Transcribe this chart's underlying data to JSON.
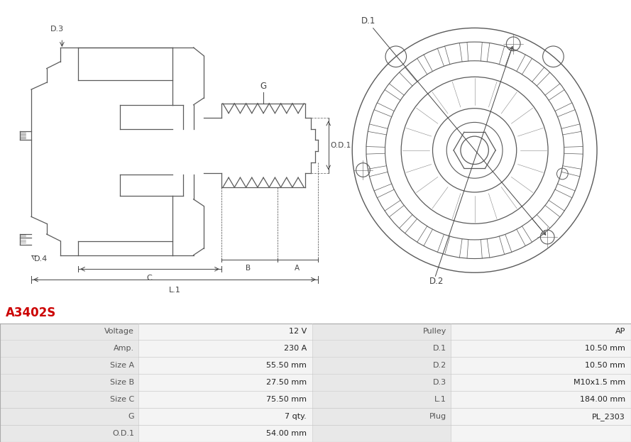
{
  "title": "A3402S",
  "title_color": "#cc0000",
  "background_color": "#ffffff",
  "table_row_bg_odd": "#e8e8e8",
  "table_row_bg_even": "#f4f4f4",
  "table_data": [
    [
      "Voltage",
      "12 V",
      "Pulley",
      "AP"
    ],
    [
      "Amp.",
      "230 A",
      "D.1",
      "10.50 mm"
    ],
    [
      "Size A",
      "55.50 mm",
      "D.2",
      "10.50 mm"
    ],
    [
      "Size B",
      "27.50 mm",
      "D.3",
      "M10x1.5 mm"
    ],
    [
      "Size C",
      "75.50 mm",
      "L.1",
      "184.00 mm"
    ],
    [
      "G",
      "7 qty.",
      "Plug",
      "PL_2303"
    ],
    [
      "O.D.1",
      "54.00 mm",
      "",
      ""
    ]
  ],
  "line_color": "#5a5a5a",
  "dim_color": "#444444",
  "ann_color": "#333333"
}
